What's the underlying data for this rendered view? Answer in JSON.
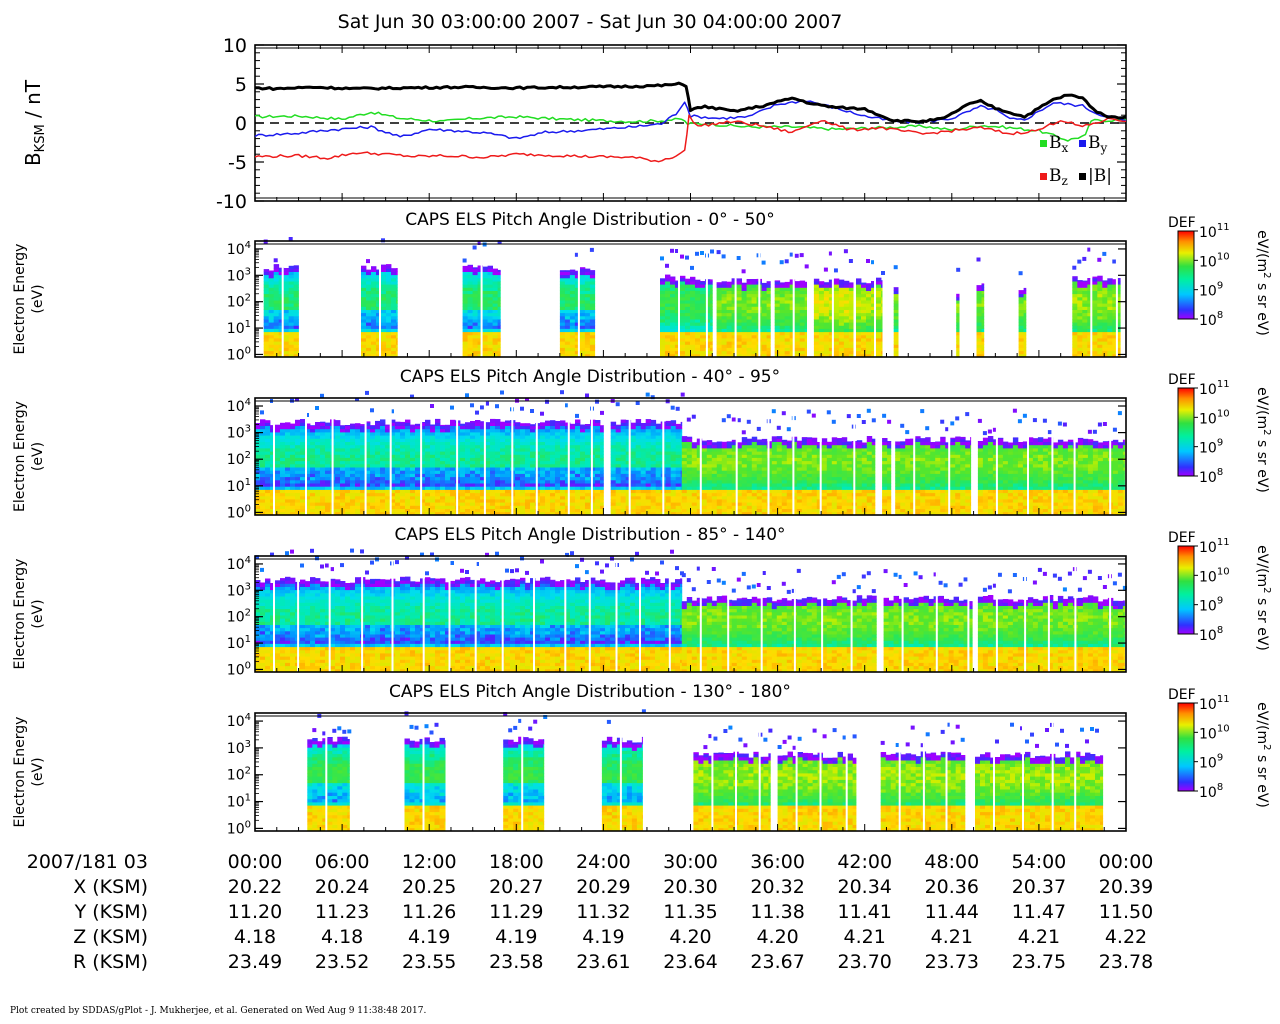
{
  "title": "Sat Jun 30 03:00:00 2007 - Sat Jun 30 04:00:00 2007",
  "credit": "Plot created by SDDAS/gPlot - J. Mukherjee, et al.  Generated on Wed Aug 9 11:38:48 2017.",
  "chart_data": [
    {
      "type": "line",
      "ylabel": "B",
      "ylabel_sub": "KSM",
      "ylabel_unit": " / nT",
      "ylim": [
        -10,
        10
      ],
      "yticks": [
        10,
        5,
        0,
        -5,
        -10
      ],
      "xlim_minutes": [
        0,
        60
      ],
      "zero_line": "dashed",
      "legend_position": "bottom-right",
      "series": [
        {
          "name": "B",
          "sub": "x",
          "color": "#22dd22",
          "points": [
            [
              0,
              0.8
            ],
            [
              3,
              0.9
            ],
            [
              6,
              0.5
            ],
            [
              8,
              1.4
            ],
            [
              10,
              0.6
            ],
            [
              13,
              0.2
            ],
            [
              15,
              0.6
            ],
            [
              18,
              0.8
            ],
            [
              21,
              0.5
            ],
            [
              24,
              0.3
            ],
            [
              26,
              0.2
            ],
            [
              28,
              0.3
            ],
            [
              29.4,
              0.5
            ],
            [
              29.8,
              -0.1
            ],
            [
              31,
              -0.1
            ],
            [
              34,
              -0.5
            ],
            [
              37,
              -0.5
            ],
            [
              40,
              -0.8
            ],
            [
              43,
              -0.6
            ],
            [
              46,
              -0.4
            ],
            [
              48,
              -0.9
            ],
            [
              50,
              -0.3
            ],
            [
              52,
              -0.6
            ],
            [
              54,
              -1.0
            ],
            [
              56,
              -2.2
            ],
            [
              57.2,
              -1.6
            ],
            [
              57.6,
              0.3
            ],
            [
              60,
              0.4
            ]
          ]
        },
        {
          "name": "B",
          "sub": "y",
          "color": "#1a1aee",
          "points": [
            [
              0,
              -1.6
            ],
            [
              3,
              -1.3
            ],
            [
              5,
              -0.9
            ],
            [
              8,
              -0.5
            ],
            [
              10,
              -1.8
            ],
            [
              12,
              -0.8
            ],
            [
              14,
              -1.0
            ],
            [
              16,
              -1.3
            ],
            [
              18,
              -2.0
            ],
            [
              20,
              -1.2
            ],
            [
              23,
              -0.9
            ],
            [
              26,
              -0.5
            ],
            [
              28,
              -0.1
            ],
            [
              29,
              1.2
            ],
            [
              29.6,
              2.8
            ],
            [
              30,
              0.9
            ],
            [
              32,
              0.6
            ],
            [
              34,
              0.8
            ],
            [
              36,
              2.4
            ],
            [
              38,
              2.9
            ],
            [
              40,
              1.9
            ],
            [
              42,
              0.9
            ],
            [
              44,
              0.2
            ],
            [
              46,
              0.1
            ],
            [
              48,
              0.6
            ],
            [
              50,
              2.1
            ],
            [
              51,
              1.7
            ],
            [
              52,
              0.5
            ],
            [
              53,
              0.4
            ],
            [
              55,
              2.6
            ],
            [
              57,
              2.2
            ],
            [
              58,
              1.2
            ],
            [
              60,
              0.3
            ]
          ]
        },
        {
          "name": "B",
          "sub": "z",
          "color": "#ee1a1a",
          "points": [
            [
              0,
              -4.3
            ],
            [
              3,
              -4.2
            ],
            [
              5,
              -4.5
            ],
            [
              7,
              -3.8
            ],
            [
              9,
              -4.0
            ],
            [
              11,
              -4.3
            ],
            [
              13,
              -4.2
            ],
            [
              16,
              -4.4
            ],
            [
              18,
              -4.0
            ],
            [
              20,
              -4.1
            ],
            [
              23,
              -4.3
            ],
            [
              26,
              -4.4
            ],
            [
              27.8,
              -4.9
            ],
            [
              29,
              -4.2
            ],
            [
              29.6,
              -3.6
            ],
            [
              29.9,
              0.9
            ],
            [
              30.5,
              -0.4
            ],
            [
              33,
              0.2
            ],
            [
              35,
              -0.4
            ],
            [
              37,
              -1.2
            ],
            [
              39,
              0.4
            ],
            [
              41,
              -0.9
            ],
            [
              43,
              -0.6
            ],
            [
              46,
              -1.4
            ],
            [
              48,
              -1.0
            ],
            [
              50,
              -0.6
            ],
            [
              52,
              -1.4
            ],
            [
              54,
              -0.9
            ],
            [
              55.5,
              0.4
            ],
            [
              57,
              -0.5
            ],
            [
              59,
              0.6
            ],
            [
              60,
              0.2
            ]
          ]
        },
        {
          "name": "|B|",
          "sub": "",
          "color": "#000000",
          "points": [
            [
              0,
              4.5
            ],
            [
              1.5,
              4.4
            ],
            [
              4,
              4.6
            ],
            [
              7,
              4.4
            ],
            [
              10,
              4.5
            ],
            [
              14,
              4.6
            ],
            [
              18,
              4.5
            ],
            [
              22,
              4.6
            ],
            [
              26,
              4.7
            ],
            [
              28,
              4.8
            ],
            [
              29.2,
              5.0
            ],
            [
              29.7,
              4.8
            ],
            [
              30,
              1.7
            ],
            [
              31,
              2.1
            ],
            [
              33,
              1.5
            ],
            [
              35,
              2.2
            ],
            [
              37,
              3.2
            ],
            [
              38.5,
              2.4
            ],
            [
              40,
              2.0
            ],
            [
              42,
              1.8
            ],
            [
              44,
              0.3
            ],
            [
              46,
              0.2
            ],
            [
              47.5,
              0.6
            ],
            [
              49,
              2.3
            ],
            [
              50,
              2.8
            ],
            [
              51,
              1.9
            ],
            [
              53,
              0.8
            ],
            [
              55,
              3.0
            ],
            [
              56,
              3.6
            ],
            [
              57,
              3.2
            ],
            [
              58,
              1.4
            ],
            [
              59,
              0.7
            ],
            [
              60,
              0.8
            ]
          ]
        }
      ]
    },
    {
      "type": "heatmap",
      "title": "CAPS ELS Pitch Angle Distribution - 0° - 50°",
      "ylabel": "Electron Energy",
      "yunit": "(eV)",
      "yscale": "log",
      "ylim": [
        0.8,
        20000
      ],
      "colorbar": {
        "label": "DEF",
        "unit_pre": "eV/(m",
        "unit_sup": "2",
        "unit_post": " s sr eV)",
        "log_range": [
          8,
          11
        ]
      },
      "blocks": [
        {
          "start": 0.6,
          "end": 3.0,
          "top_log": 3.3,
          "peak_log": 9.55,
          "cold": true
        },
        {
          "start": 7.3,
          "end": 9.8,
          "top_log": 3.3,
          "peak_log": 9.55,
          "cold": true
        },
        {
          "start": 14.3,
          "end": 16.9,
          "top_log": 3.3,
          "peak_log": 9.6,
          "cold": true
        },
        {
          "start": 21.0,
          "end": 23.4,
          "top_log": 3.3,
          "peak_log": 9.55,
          "cold": true
        },
        {
          "start": 27.9,
          "end": 31.5,
          "top_log": 2.9,
          "peak_log": 9.7
        },
        {
          "start": 31.8,
          "end": 35.5,
          "top_log": 2.8,
          "peak_log": 10.0
        },
        {
          "start": 35.8,
          "end": 38.0,
          "top_log": 2.8,
          "peak_log": 10.0
        },
        {
          "start": 38.5,
          "end": 41.2,
          "top_log": 2.8,
          "peak_log": 10.3
        },
        {
          "start": 41.4,
          "end": 43.2,
          "top_log": 2.8,
          "peak_log": 10.2
        },
        {
          "start": 44.0,
          "end": 44.3,
          "top_log": 2.5,
          "peak_log": 10.0
        },
        {
          "start": 48.3,
          "end": 48.5,
          "top_log": 2.4,
          "peak_log": 10.0
        },
        {
          "start": 49.7,
          "end": 50.2,
          "top_log": 2.6,
          "peak_log": 10.0
        },
        {
          "start": 52.6,
          "end": 53.1,
          "top_log": 2.5,
          "peak_log": 10.0
        },
        {
          "start": 56.3,
          "end": 59.6,
          "top_log": 2.9,
          "peak_log": 10.1
        }
      ]
    },
    {
      "type": "heatmap",
      "title": "CAPS ELS Pitch Angle Distribution - 40° - 95°",
      "ylabel": "Electron Energy",
      "yunit": "(eV)",
      "yscale": "log",
      "ylim": [
        0.8,
        20000
      ],
      "colorbar": {
        "label": "DEF",
        "unit_pre": "eV/(m",
        "unit_sup": "2",
        "unit_post": " s sr eV)",
        "log_range": [
          8,
          11
        ]
      },
      "blocks": [
        {
          "start": 0.0,
          "end": 24.0,
          "top_log": 3.4,
          "peak_log": 9.4,
          "cold": true
        },
        {
          "start": 24.5,
          "end": 29.4,
          "top_log": 3.4,
          "peak_log": 9.4,
          "cold": true
        },
        {
          "start": 29.4,
          "end": 42.7,
          "top_log": 2.75,
          "peak_log": 10.0
        },
        {
          "start": 43.2,
          "end": 43.8,
          "top_log": 2.75,
          "peak_log": 10.0
        },
        {
          "start": 44.1,
          "end": 49.3,
          "top_log": 2.75,
          "peak_log": 10.0
        },
        {
          "start": 49.8,
          "end": 59.9,
          "top_log": 2.75,
          "peak_log": 10.0
        }
      ]
    },
    {
      "type": "heatmap",
      "title": "CAPS ELS Pitch Angle Distribution - 85° - 140°",
      "ylabel": "Electron Energy",
      "yunit": "(eV)",
      "yscale": "log",
      "ylim": [
        0.8,
        20000
      ],
      "colorbar": {
        "label": "DEF",
        "unit_pre": "eV/(m",
        "unit_sup": "2",
        "unit_post": " s sr eV)",
        "log_range": [
          8,
          11
        ]
      },
      "blocks": [
        {
          "start": 0.0,
          "end": 29.4,
          "top_log": 3.4,
          "peak_log": 9.4,
          "cold": true
        },
        {
          "start": 29.4,
          "end": 42.8,
          "top_log": 2.7,
          "peak_log": 10.0
        },
        {
          "start": 43.3,
          "end": 49.4,
          "top_log": 2.7,
          "peak_log": 10.0
        },
        {
          "start": 49.8,
          "end": 59.9,
          "top_log": 2.7,
          "peak_log": 10.0
        }
      ]
    },
    {
      "type": "heatmap",
      "title": "CAPS ELS Pitch Angle Distribution - 130° - 180°",
      "ylabel": "Electron Energy",
      "yunit": "(eV)",
      "yscale": "log",
      "ylim": [
        0.8,
        20000
      ],
      "colorbar": {
        "label": "DEF",
        "unit_pre": "eV/(m",
        "unit_sup": "2",
        "unit_post": " s sr eV)",
        "log_range": [
          8,
          11
        ]
      },
      "blocks": [
        {
          "start": 3.6,
          "end": 6.5,
          "top_log": 3.3,
          "peak_log": 9.7,
          "cold": true
        },
        {
          "start": 10.3,
          "end": 13.1,
          "top_log": 3.3,
          "peak_log": 9.7,
          "cold": true
        },
        {
          "start": 17.1,
          "end": 19.9,
          "top_log": 3.3,
          "peak_log": 9.7,
          "cold": true
        },
        {
          "start": 23.9,
          "end": 26.7,
          "top_log": 3.3,
          "peak_log": 9.7,
          "cold": true
        },
        {
          "start": 30.2,
          "end": 35.5,
          "top_log": 2.75,
          "peak_log": 10.1
        },
        {
          "start": 36.0,
          "end": 41.4,
          "top_log": 2.75,
          "peak_log": 10.1
        },
        {
          "start": 43.1,
          "end": 48.9,
          "top_log": 2.75,
          "peak_log": 10.1
        },
        {
          "start": 49.6,
          "end": 58.4,
          "top_log": 2.75,
          "peak_log": 10.1
        }
      ]
    }
  ],
  "ephemeris": {
    "rows": [
      {
        "label": "2007/181 03",
        "values": [
          "00:00",
          "06:00",
          "12:00",
          "18:00",
          "24:00",
          "30:00",
          "36:00",
          "42:00",
          "48:00",
          "54:00",
          "00:00"
        ]
      },
      {
        "label": "X (KSM)",
        "values": [
          "20.22",
          "20.24",
          "20.25",
          "20.27",
          "20.29",
          "20.30",
          "20.32",
          "20.34",
          "20.36",
          "20.37",
          "20.39"
        ]
      },
      {
        "label": "Y (KSM)",
        "values": [
          "11.20",
          "11.23",
          "11.26",
          "11.29",
          "11.32",
          "11.35",
          "11.38",
          "11.41",
          "11.44",
          "11.47",
          "11.50"
        ]
      },
      {
        "label": "Z (KSM)",
        "values": [
          "4.18",
          "4.18",
          "4.19",
          "4.19",
          "4.19",
          "4.20",
          "4.20",
          "4.21",
          "4.21",
          "4.21",
          "4.22"
        ]
      },
      {
        "label": "R (KSM)",
        "values": [
          "23.49",
          "23.52",
          "23.55",
          "23.58",
          "23.61",
          "23.64",
          "23.67",
          "23.70",
          "23.73",
          "23.75",
          "23.78"
        ]
      }
    ]
  }
}
